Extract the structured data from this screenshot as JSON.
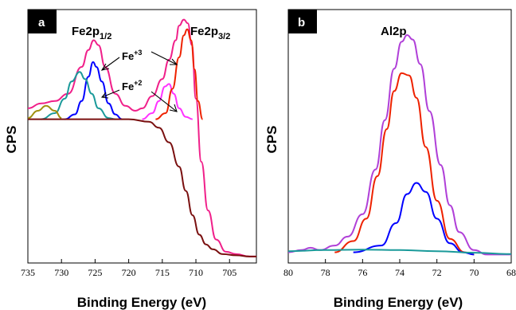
{
  "chart_data": [
    {
      "type": "line",
      "panel_label": "a",
      "xlabel": "Binding Energy (eV)",
      "ylabel": "CPS",
      "xlim": [
        735,
        701
      ],
      "x_reversed": true,
      "x_ticks": [
        "735",
        "730",
        "725",
        "720",
        "715",
        "710",
        "705"
      ],
      "x_tick_values": [
        735,
        730,
        725,
        720,
        715,
        710,
        705
      ],
      "peak_labels": [
        {
          "main": "Fe2p",
          "sub": "1/2"
        },
        {
          "main": "Fe2p",
          "sub": "3/2"
        }
      ],
      "annotations": [
        {
          "main": "Fe",
          "sup": "+3"
        },
        {
          "main": "Fe",
          "sup": "+2"
        }
      ],
      "series": [
        {
          "color": "#f0208a",
          "x": [
            735,
            733,
            731,
            729,
            727,
            726,
            725.2,
            724.5,
            723.5,
            722,
            720.5,
            719,
            718,
            716.5,
            715,
            714,
            713,
            712.5,
            711.8,
            711.2,
            710.6,
            710,
            709.2,
            708.2,
            707,
            705.5,
            704,
            702,
            701
          ],
          "y": [
            0.62,
            0.64,
            0.65,
            0.68,
            0.79,
            0.86,
            0.9,
            0.88,
            0.79,
            0.68,
            0.63,
            0.61,
            0.62,
            0.67,
            0.74,
            0.82,
            0.9,
            0.96,
            0.985,
            0.97,
            0.88,
            0.66,
            0.4,
            0.2,
            0.08,
            0.03,
            0.02,
            0.01,
            0.01
          ]
        },
        {
          "color": "#0000ff",
          "x": [
            729.5,
            728,
            727,
            726,
            725.3,
            724.8,
            724,
            723,
            722,
            721
          ],
          "y": [
            0.575,
            0.595,
            0.65,
            0.75,
            0.81,
            0.79,
            0.73,
            0.64,
            0.595,
            0.575
          ]
        },
        {
          "color": "#1a9a9a",
          "x": [
            733,
            731,
            729.5,
            728.5,
            727.3,
            726.5,
            725.5,
            724.5,
            723,
            722
          ],
          "y": [
            0.575,
            0.6,
            0.66,
            0.73,
            0.77,
            0.74,
            0.68,
            0.62,
            0.58,
            0.575
          ]
        },
        {
          "color": "#a09010",
          "x": [
            735,
            733.5,
            732.3,
            731,
            730
          ],
          "y": [
            0.58,
            0.61,
            0.63,
            0.61,
            0.58
          ]
        },
        {
          "color": "#ff33ff",
          "x": [
            718,
            716.5,
            715.5,
            714.6,
            714,
            713.3,
            712.5,
            711.5,
            710.5
          ],
          "y": [
            0.575,
            0.6,
            0.65,
            0.71,
            0.72,
            0.68,
            0.62,
            0.585,
            0.575
          ]
        },
        {
          "color": "#ee2200",
          "x": [
            716,
            714.5,
            713.5,
            712.5,
            711.8,
            711.3,
            710.7,
            710.2,
            709.7,
            709
          ],
          "y": [
            0.575,
            0.6,
            0.7,
            0.83,
            0.92,
            0.945,
            0.9,
            0.78,
            0.65,
            0.575
          ]
        },
        {
          "color": "#7a1010",
          "x": [
            735,
            730,
            725,
            720,
            717,
            715.5,
            714,
            712.5,
            711.5,
            710.5,
            709.5,
            708.5,
            707.5,
            706,
            704,
            702,
            701
          ],
          "y": [
            0.575,
            0.575,
            0.575,
            0.575,
            0.565,
            0.54,
            0.48,
            0.38,
            0.28,
            0.18,
            0.1,
            0.06,
            0.04,
            0.02,
            0.015,
            0.01,
            0.01
          ]
        }
      ]
    },
    {
      "type": "line",
      "panel_label": "b",
      "title": "Al2p",
      "xlabel": "Binding Energy (eV)",
      "ylabel": "CPS",
      "xlim": [
        80,
        68
      ],
      "x_reversed": true,
      "x_ticks": [
        "80",
        "78",
        "76",
        "74",
        "72",
        "70",
        "68"
      ],
      "x_tick_values": [
        80,
        78,
        76,
        74,
        72,
        70,
        68
      ],
      "series": [
        {
          "color": "#b040d8",
          "x": [
            80,
            79.3,
            78.8,
            78.3,
            77.5,
            76.8,
            76,
            75.3,
            74.8,
            74.3,
            73.9,
            73.6,
            73.3,
            72.9,
            72.4,
            71.8,
            71.3,
            70.8,
            70,
            69.3,
            68.5,
            68
          ],
          "y": [
            0.03,
            0.04,
            0.05,
            0.04,
            0.06,
            0.1,
            0.2,
            0.4,
            0.62,
            0.85,
            0.97,
            1.0,
            0.98,
            0.87,
            0.66,
            0.42,
            0.24,
            0.12,
            0.04,
            0.02,
            0.02,
            0.02
          ]
        },
        {
          "color": "#ee2200",
          "x": [
            77.5,
            76.5,
            75.8,
            75.2,
            74.7,
            74.3,
            73.9,
            73.5,
            73.1,
            72.6,
            72,
            71.3,
            70.5,
            70
          ],
          "y": [
            0.03,
            0.08,
            0.18,
            0.37,
            0.58,
            0.75,
            0.83,
            0.82,
            0.72,
            0.5,
            0.26,
            0.09,
            0.03,
            0.02
          ]
        },
        {
          "color": "#0000ff",
          "x": [
            76.5,
            75,
            74.2,
            73.6,
            73.1,
            72.6,
            72,
            71.3,
            70.6,
            70
          ],
          "y": [
            0.03,
            0.06,
            0.16,
            0.29,
            0.34,
            0.3,
            0.18,
            0.07,
            0.03,
            0.02
          ]
        },
        {
          "color": "#1a9a9a",
          "x": [
            80,
            78,
            76,
            74,
            72,
            70,
            68
          ],
          "y": [
            0.035,
            0.04,
            0.042,
            0.04,
            0.035,
            0.028,
            0.022
          ]
        }
      ]
    }
  ]
}
